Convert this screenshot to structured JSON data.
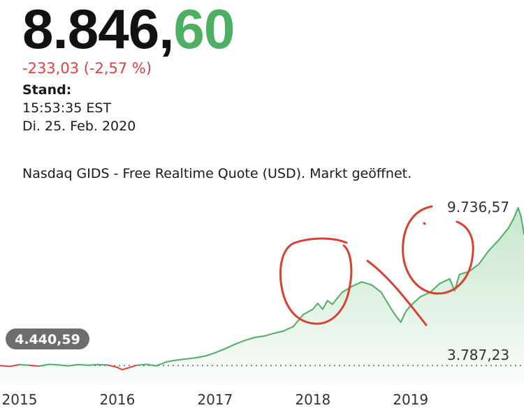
{
  "quote": {
    "price_int": "8.846,",
    "price_dec": "60",
    "change": "-233,03 (-2,57 %)",
    "stand_label": "Stand:",
    "time": "15:53:35 EST",
    "date": "Di. 25. Feb. 2020",
    "source": "Nasdaq GIDS - Free Realtime Quote (USD). Markt geöffnet."
  },
  "colors": {
    "up": "#4caf62",
    "down": "#e0413f",
    "pill": "#6d6d6d",
    "annotation": "#d9402e"
  },
  "chart_data": {
    "type": "area",
    "title": "",
    "xlabel": "",
    "ylabel": "",
    "x_ticks": [
      "2015",
      "2016",
      "2017",
      "2018",
      "2019"
    ],
    "x_tick_years": [
      2015,
      2016,
      2017,
      2018,
      2019
    ],
    "xlim": [
      2014.8,
      2020.16
    ],
    "ylim": [
      3787.23,
      9736.57
    ],
    "max_label": "9.736,57",
    "min_label": "3.787,23",
    "reference_value": 4440.59,
    "reference_label": "4.440,59",
    "series": [
      {
        "x": [
          2014.8,
          2014.9,
          2015.0,
          2015.1,
          2015.2,
          2015.3,
          2015.4,
          2015.5,
          2015.6,
          2015.7,
          2015.8,
          2015.9,
          2016.0,
          2016.05,
          2016.1,
          2016.15,
          2016.2,
          2016.3,
          2016.4,
          2016.5,
          2016.6,
          2016.7,
          2016.8,
          2016.9,
          2017.0,
          2017.1,
          2017.2,
          2017.3,
          2017.4,
          2017.5,
          2017.6,
          2017.7,
          2017.8,
          2017.9,
          2018.0,
          2018.05,
          2018.1,
          2018.15,
          2018.2,
          2018.3,
          2018.4,
          2018.5,
          2018.6,
          2018.7,
          2018.8,
          2018.85,
          2018.9,
          2018.95,
          2019.0,
          2019.1,
          2019.2,
          2019.3,
          2019.4,
          2019.45,
          2019.5,
          2019.6,
          2019.7,
          2019.8,
          2019.9,
          2020.0,
          2020.05,
          2020.1,
          2020.13,
          2020.16
        ],
        "values": [
          4440,
          4410,
          4470,
          4450,
          4420,
          4480,
          4460,
          4430,
          4470,
          4450,
          4470,
          4460,
          4380,
          4300,
          4350,
          4400,
          4450,
          4480,
          4430,
          4560,
          4620,
          4660,
          4700,
          4760,
          4870,
          5000,
          5150,
          5280,
          5380,
          5430,
          5520,
          5600,
          5750,
          6150,
          6330,
          6530,
          6330,
          6620,
          6500,
          6900,
          7100,
          7250,
          7150,
          6900,
          6350,
          6100,
          5900,
          6250,
          6450,
          6750,
          6900,
          7200,
          7350,
          6950,
          7500,
          7600,
          7850,
          8300,
          8650,
          9050,
          9350,
          9736,
          9450,
          8846
        ]
      }
    ]
  }
}
